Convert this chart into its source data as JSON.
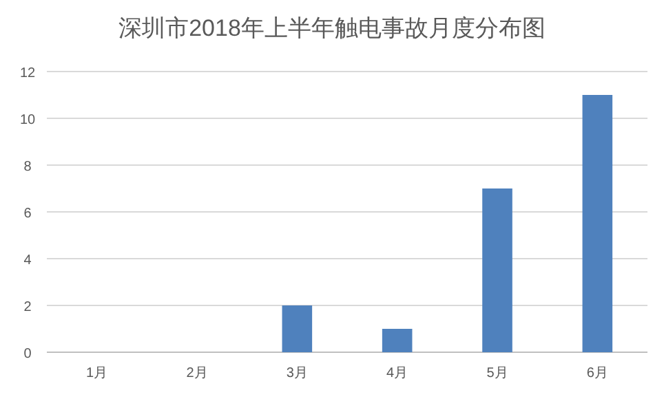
{
  "chart_data": {
    "type": "bar",
    "title": "深圳市2018年上半年触电事故月度分布图",
    "categories": [
      "1月",
      "2月",
      "3月",
      "4月",
      "5月",
      "6月"
    ],
    "values": [
      0,
      0,
      2,
      1,
      7,
      11
    ],
    "color": "#4f81bd",
    "ylim": [
      0,
      12
    ],
    "yticks": [
      0,
      2,
      4,
      6,
      8,
      10,
      12
    ],
    "grid": "y"
  }
}
